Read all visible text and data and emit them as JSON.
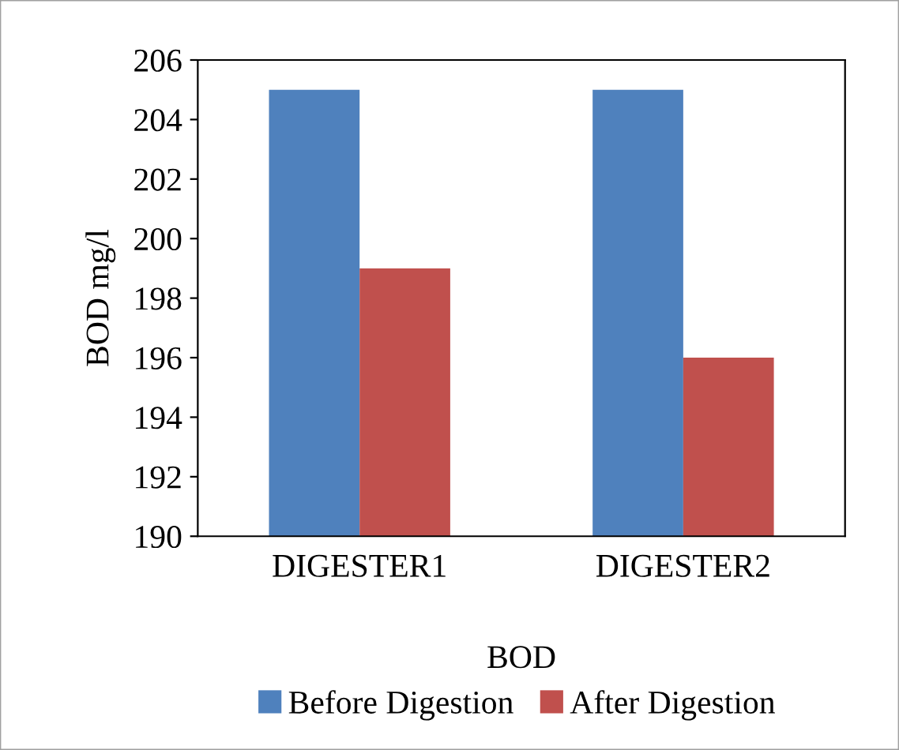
{
  "chart_data": {
    "type": "bar",
    "xlabel": "BOD",
    "ylabel": "BOD mg/l",
    "categories": [
      "DIGESTER1",
      "DIGESTER2"
    ],
    "series": [
      {
        "name": "Before Digestion",
        "color": "#4f81bd",
        "values": [
          205,
          205
        ]
      },
      {
        "name": "After Digestion",
        "color": "#c0504d",
        "values": [
          199,
          196
        ]
      }
    ],
    "ylim": [
      190,
      206
    ],
    "yticks": [
      190,
      192,
      194,
      196,
      198,
      200,
      202,
      204,
      206
    ],
    "grid": false,
    "legend": "bottom"
  }
}
